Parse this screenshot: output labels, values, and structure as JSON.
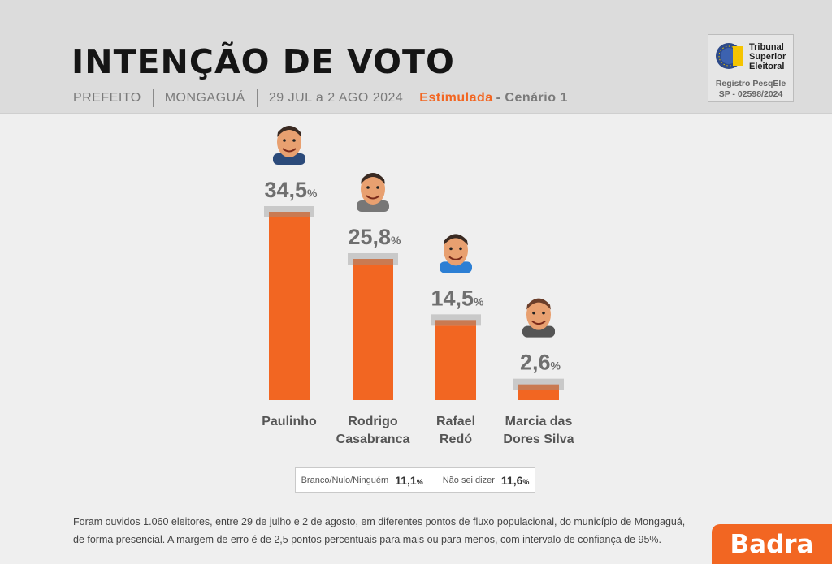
{
  "header": {
    "title": "INTENÇÃO DE VOTO",
    "office": "PREFEITO",
    "city": "MONGAGUÁ",
    "dates": "29 JUL a 2 AGO 2024",
    "type": "Estimulada",
    "scenario": "- Cenário 1"
  },
  "tse": {
    "name_line1": "Tribunal",
    "name_line2": "Superior",
    "name_line3": "Eleitoral",
    "registry_label": "Registro PesqEle",
    "registry_number": "SP - 02598/2024"
  },
  "colors": {
    "bar": "#f26622",
    "bar_cap": "#c9c9c9",
    "accent": "#f26622"
  },
  "chart_data": {
    "type": "bar",
    "categories": [
      "Paulinho",
      "Rodrigo Casabranca",
      "Rafael Redó",
      "Marcia das Dores Silva"
    ],
    "category_lines": [
      [
        "Paulinho"
      ],
      [
        "Rodrigo",
        "Casabranca"
      ],
      [
        "Rafael",
        "Redó"
      ],
      [
        "Marcia das",
        "Dores Silva"
      ]
    ],
    "values": [
      34.5,
      25.8,
      14.5,
      2.6
    ],
    "value_labels": [
      "34,5",
      "25,8",
      "14,5",
      "2,6"
    ],
    "unit": "%",
    "title": "INTENÇÃO DE VOTO",
    "xlabel": "",
    "ylabel": "",
    "ylim": [
      0,
      34.5
    ],
    "grid": false,
    "legend": "none"
  },
  "others": {
    "blank_label": "Branco/Nulo/Ninguém",
    "blank_value": "11,1",
    "unknown_label": "Não sei dizer",
    "unknown_value": "11,6",
    "unit": "%"
  },
  "footnote": {
    "line1": "Foram ouvidos 1.060 eleitores, entre 29 de julho e 2 de agosto, em diferentes pontos de fluxo populacional, do município de Mongaguá,",
    "line2": "de forma presencial. A margem de erro é de 2,5 pontos percentuais para mais ou para menos, com intervalo de confiança de 95%."
  },
  "brand": "Badra"
}
